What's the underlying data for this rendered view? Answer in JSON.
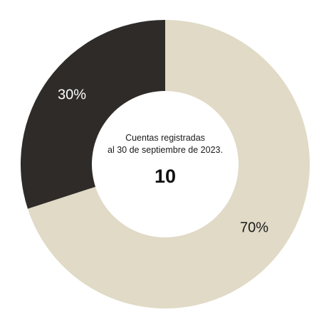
{
  "chart_data": {
    "type": "pie",
    "subtype": "donut",
    "categories": [
      "",
      ""
    ],
    "values": [
      70,
      30
    ],
    "value_labels": [
      "70%",
      "30%"
    ],
    "colors": [
      "#e0dac6",
      "#2e2b28"
    ],
    "center_label_line1": "Cuentas registradas",
    "center_label_line2": "al 30 de septiembre de 2023.",
    "center_value": "10"
  }
}
